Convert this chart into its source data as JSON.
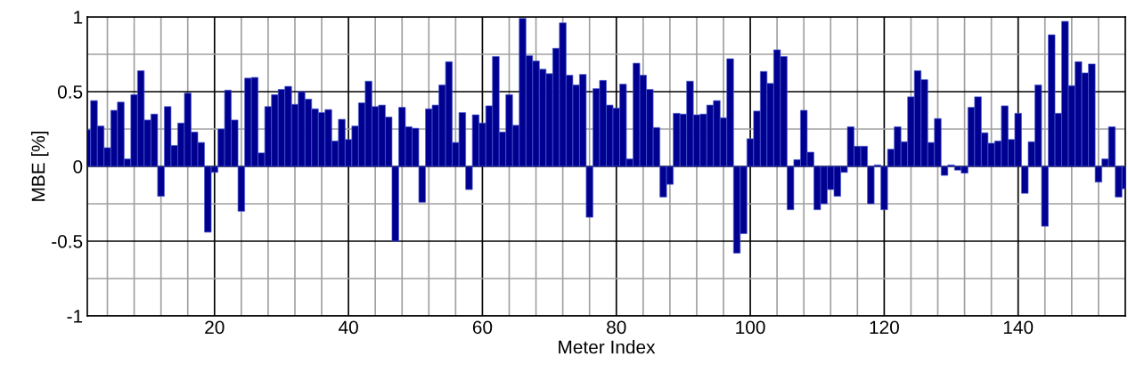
{
  "chart_data": {
    "type": "bar",
    "xlabel": "Meter Index",
    "ylabel": "MBE [%]",
    "color": "#000090",
    "grid": true,
    "x": [
      1,
      2,
      3,
      4,
      5,
      6,
      7,
      8,
      9,
      10,
      11,
      12,
      13,
      14,
      15,
      16,
      17,
      18,
      19,
      20,
      21,
      22,
      23,
      24,
      25,
      26,
      27,
      28,
      29,
      30,
      31,
      32,
      33,
      34,
      35,
      36,
      37,
      38,
      39,
      40,
      41,
      42,
      43,
      44,
      45,
      46,
      47,
      48,
      49,
      50,
      51,
      52,
      53,
      54,
      55,
      56,
      57,
      58,
      59,
      60,
      61,
      62,
      63,
      64,
      65,
      66,
      67,
      68,
      69,
      70,
      71,
      72,
      73,
      74,
      75,
      76,
      77,
      78,
      79,
      80,
      81,
      82,
      83,
      84,
      85,
      86,
      87,
      88,
      89,
      90,
      91,
      92,
      93,
      94,
      95,
      96,
      97,
      98,
      99,
      100,
      101,
      102,
      103,
      104,
      105,
      106,
      107,
      108,
      109,
      110,
      111,
      112,
      113,
      114,
      115,
      116,
      117,
      118,
      119,
      120,
      121,
      122,
      123,
      124,
      125,
      126,
      127,
      128,
      129,
      130,
      131,
      132,
      133,
      134,
      135,
      136,
      137,
      138,
      139,
      140,
      141,
      142,
      143,
      144,
      145,
      146,
      147,
      148,
      149,
      150,
      151,
      152,
      153,
      154,
      155,
      156
    ],
    "values": [
      0.245,
      0.44,
      0.27,
      0.125,
      0.375,
      0.43,
      0.05,
      0.48,
      0.64,
      0.31,
      0.35,
      -0.2,
      0.4,
      0.14,
      0.29,
      0.49,
      0.23,
      0.16,
      -0.44,
      -0.04,
      0.25,
      0.51,
      0.31,
      -0.3,
      0.59,
      0.595,
      0.09,
      0.4,
      0.48,
      0.515,
      0.535,
      0.415,
      0.5,
      0.45,
      0.385,
      0.36,
      0.38,
      0.17,
      0.315,
      0.18,
      0.27,
      0.425,
      0.57,
      0.4,
      0.41,
      0.33,
      -0.5,
      0.395,
      0.265,
      0.255,
      -0.24,
      0.385,
      0.41,
      0.545,
      0.7,
      0.16,
      0.36,
      -0.155,
      0.345,
      0.29,
      0.405,
      0.735,
      0.23,
      0.48,
      0.275,
      0.99,
      0.74,
      0.705,
      0.65,
      0.62,
      0.79,
      0.96,
      0.61,
      0.545,
      0.615,
      -0.34,
      0.52,
      0.575,
      0.41,
      0.39,
      0.55,
      0.05,
      0.69,
      0.61,
      0.515,
      0.26,
      -0.205,
      -0.12,
      0.355,
      0.35,
      0.57,
      0.345,
      0.35,
      0.41,
      0.44,
      0.325,
      0.72,
      -0.58,
      -0.45,
      0.185,
      0.37,
      0.635,
      0.555,
      0.78,
      0.735,
      -0.29,
      0.045,
      0.375,
      0.095,
      -0.29,
      -0.25,
      -0.155,
      -0.2,
      -0.04,
      0.265,
      0.135,
      0.135,
      -0.25,
      0.01,
      -0.29,
      0.115,
      0.265,
      0.165,
      0.465,
      0.64,
      0.58,
      0.16,
      0.32,
      -0.06,
      0.01,
      -0.025,
      -0.045,
      0.395,
      0.465,
      0.225,
      0.155,
      0.17,
      0.405,
      0.18,
      0.355,
      -0.18,
      0.165,
      0.545,
      -0.4,
      0.88,
      0.355,
      0.97,
      0.54,
      0.7,
      0.625,
      0.685,
      -0.105,
      0.05,
      0.265,
      -0.205,
      -0.15
    ],
    "xlim": [
      1,
      156
    ],
    "xticks": [
      {
        "value": 4,
        "label": null
      },
      {
        "value": 8,
        "label": null
      },
      {
        "value": 12,
        "label": null
      },
      {
        "value": 16,
        "label": null
      },
      20,
      {
        "value": 24,
        "label": null
      },
      {
        "value": 28,
        "label": null
      },
      {
        "value": 32,
        "label": null
      },
      {
        "value": 36,
        "label": null
      },
      40,
      {
        "value": 44,
        "label": null
      },
      {
        "value": 48,
        "label": null
      },
      {
        "value": 52,
        "label": null
      },
      {
        "value": 56,
        "label": null
      },
      60,
      {
        "value": 64,
        "label": null
      },
      {
        "value": 68,
        "label": null
      },
      {
        "value": 72,
        "label": null
      },
      {
        "value": 76,
        "label": null
      },
      80,
      {
        "value": 84,
        "label": null
      },
      {
        "value": 88,
        "label": null
      },
      {
        "value": 92,
        "label": null
      },
      {
        "value": 96,
        "label": null
      },
      100,
      {
        "value": 104,
        "label": null
      },
      {
        "value": 108,
        "label": null
      },
      {
        "value": 112,
        "label": null
      },
      {
        "value": 116,
        "label": null
      },
      120,
      {
        "value": 124,
        "label": null
      },
      {
        "value": 128,
        "label": null
      },
      {
        "value": 132,
        "label": null
      },
      {
        "value": 136,
        "label": null
      },
      140,
      {
        "value": 144,
        "label": null
      },
      {
        "value": 148,
        "label": null
      },
      {
        "value": 152,
        "label": null
      },
      {
        "value": 156,
        "label": null
      }
    ],
    "ylim": [
      -1,
      1
    ],
    "yticks": [
      -1,
      {
        "value": -0.75,
        "label": null
      },
      -0.5,
      {
        "value": -0.25,
        "label": null
      },
      0,
      {
        "value": 0.25,
        "label": null
      },
      0.5,
      {
        "value": 0.75,
        "label": null
      },
      1
    ]
  }
}
